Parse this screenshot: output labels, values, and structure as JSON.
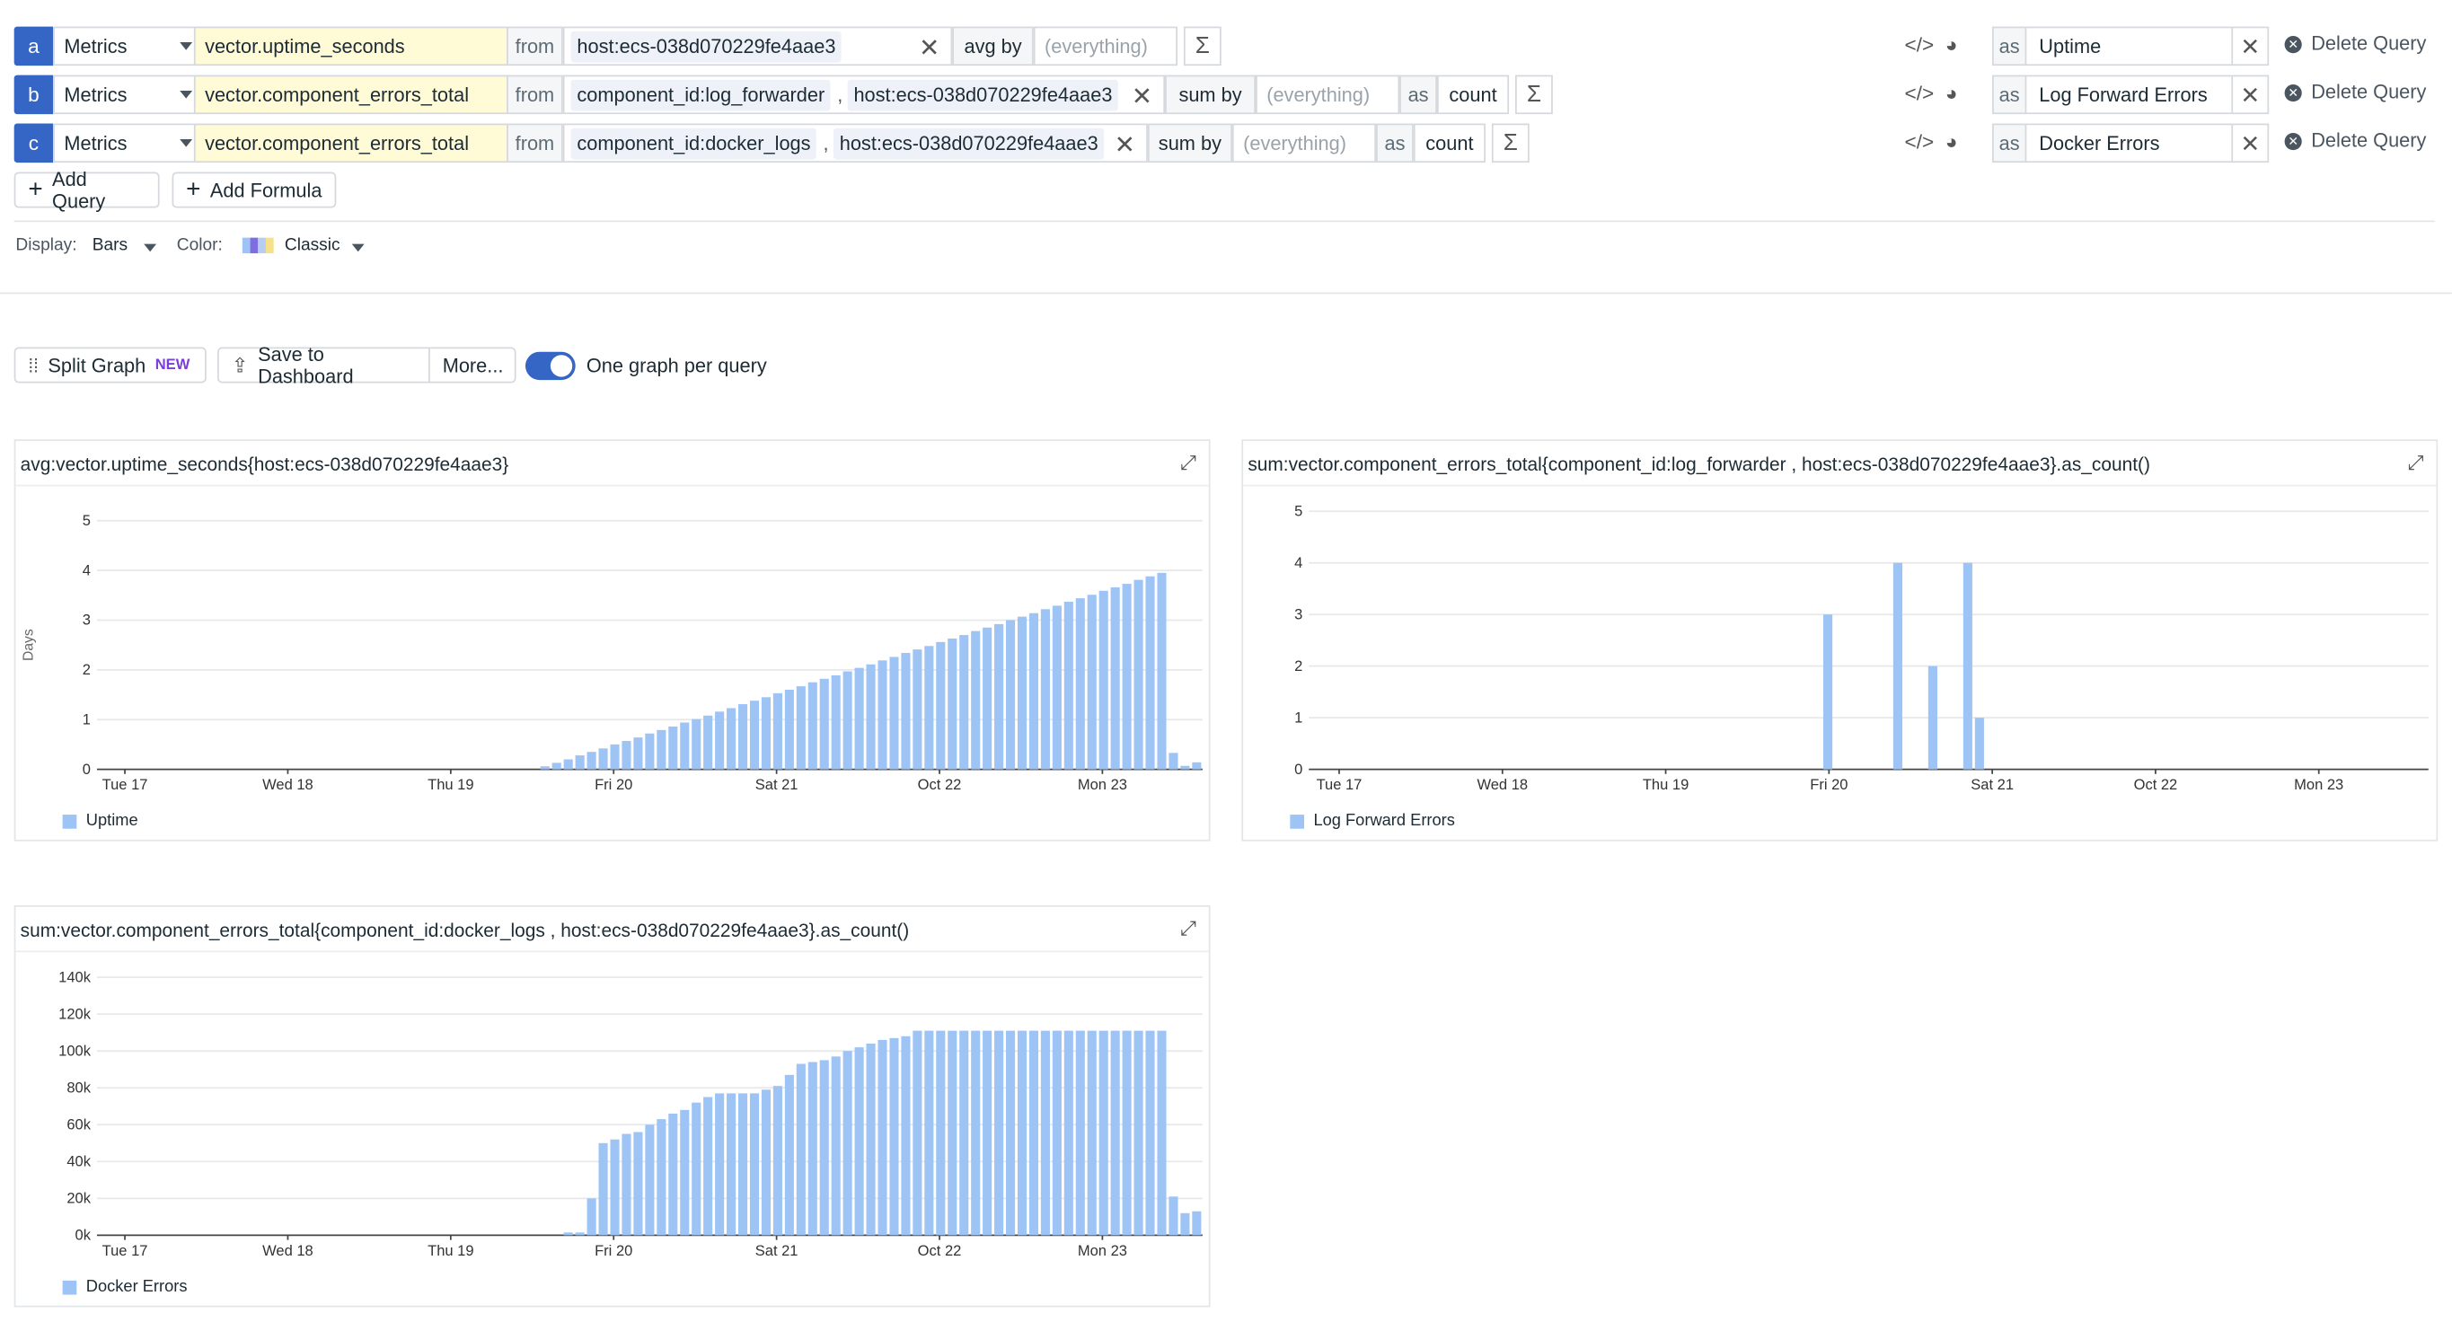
{
  "queries": [
    {
      "letter": "a",
      "source": "Metrics",
      "metric": "vector.uptime_seconds",
      "from_label": "from",
      "tags": [
        "host:ecs-038d070229fe4aae3"
      ],
      "agg_label": "avg by",
      "group_placeholder": "(everything)",
      "as_label": "",
      "rollup": "",
      "alias_as_label": "as",
      "alias": "Uptime",
      "delete_label": "Delete Query"
    },
    {
      "letter": "b",
      "source": "Metrics",
      "metric": "vector.component_errors_total",
      "from_label": "from",
      "tags": [
        "component_id:log_forwarder",
        "host:ecs-038d070229fe4aae3"
      ],
      "agg_label": "sum by",
      "group_placeholder": "(everything)",
      "as_label": "as",
      "rollup": "count",
      "alias_as_label": "as",
      "alias": "Log Forward Errors",
      "delete_label": "Delete Query"
    },
    {
      "letter": "c",
      "source": "Metrics",
      "metric": "vector.component_errors_total",
      "from_label": "from",
      "tags": [
        "component_id:docker_logs",
        "host:ecs-038d070229fe4aae3"
      ],
      "agg_label": "sum by",
      "group_placeholder": "(everything)",
      "as_label": "as",
      "rollup": "count",
      "alias_as_label": "as",
      "alias": "Docker Errors",
      "delete_label": "Delete Query"
    }
  ],
  "actions": {
    "add_query": "Add Query",
    "add_formula": "Add Formula"
  },
  "display": {
    "display_label": "Display:",
    "display_value": "Bars",
    "color_label": "Color:",
    "color_value": "Classic"
  },
  "toolbar": {
    "split_graph": "Split Graph",
    "split_badge": "NEW",
    "save_dashboard": "Save to Dashboard",
    "more": "More...",
    "one_graph_label": "One graph per query",
    "one_graph_on": true
  },
  "colors": {
    "accent": "#3565c5",
    "bar": "#9ec4f5",
    "metric_bg": "#fffbd6",
    "badge": "#7a3fd6"
  },
  "chart_data": [
    {
      "type": "bar",
      "title": "avg:vector.uptime_seconds{host:ecs-038d070229fe4aae3}",
      "ylabel": "Days",
      "ylim": [
        0,
        5
      ],
      "yticks": [
        0,
        1,
        2,
        3,
        4,
        5
      ],
      "xticks": [
        "Tue 17",
        "Wed 18",
        "Thu 19",
        "Fri 20",
        "Sat 21",
        "Oct 22",
        "Mon 23"
      ],
      "legend": "Uptime",
      "values": [
        0,
        0,
        0,
        0,
        0,
        0,
        0,
        0,
        0,
        0,
        0,
        0,
        0,
        0,
        0,
        0,
        0,
        0,
        0,
        0,
        0,
        0,
        0,
        0,
        0,
        0,
        0,
        0,
        0,
        0,
        0,
        0,
        0,
        0,
        0,
        0,
        0,
        0,
        0.06,
        0.13,
        0.2,
        0.28,
        0.35,
        0.42,
        0.5,
        0.57,
        0.64,
        0.72,
        0.79,
        0.86,
        0.94,
        1.01,
        1.08,
        1.16,
        1.23,
        1.31,
        1.38,
        1.45,
        1.53,
        1.6,
        1.67,
        1.75,
        1.82,
        1.89,
        1.97,
        2.04,
        2.11,
        2.19,
        2.26,
        2.34,
        2.41,
        2.48,
        2.56,
        2.63,
        2.7,
        2.78,
        2.85,
        2.92,
        3.0,
        3.07,
        3.14,
        3.22,
        3.29,
        3.37,
        3.44,
        3.51,
        3.59,
        3.66,
        3.73,
        3.81,
        3.88,
        3.95,
        0.33,
        0.07,
        0.14
      ]
    },
    {
      "type": "bar",
      "title": "sum:vector.component_errors_total{component_id:log_forwarder , host:ecs-038d070229fe4aae3}.as_count()",
      "ylabel": "",
      "ylim": [
        0,
        5
      ],
      "yticks": [
        0,
        1,
        2,
        3,
        4,
        5
      ],
      "xticks": [
        "Tue 17",
        "Wed 18",
        "Thu 19",
        "Fri 20",
        "Sat 21",
        "Oct 22",
        "Mon 23"
      ],
      "legend": "Log Forward Errors",
      "values": [
        0,
        0,
        0,
        0,
        0,
        0,
        0,
        0,
        0,
        0,
        0,
        0,
        0,
        0,
        0,
        0,
        0,
        0,
        0,
        0,
        0,
        0,
        0,
        0,
        0,
        0,
        0,
        0,
        0,
        0,
        0,
        0,
        0,
        0,
        0,
        0,
        0,
        0,
        0,
        0,
        0,
        0,
        0,
        0,
        0,
        0,
        0,
        0,
        0,
        0,
        0,
        0,
        0,
        0,
        0,
        0,
        0,
        0,
        0,
        0,
        0,
        0,
        0,
        0,
        0,
        0,
        0,
        0,
        0,
        0,
        0,
        0,
        0,
        0,
        0,
        0,
        0,
        0,
        0,
        0,
        0,
        0,
        0,
        0,
        0,
        0,
        0,
        0,
        0,
        0,
        0,
        0,
        0,
        0,
        0,
        0
      ],
      "sparse": [
        [
          44,
          3
        ],
        [
          50,
          4
        ],
        [
          53,
          2
        ],
        [
          56,
          4
        ],
        [
          57,
          1
        ]
      ]
    },
    {
      "type": "bar",
      "title": "sum:vector.component_errors_total{component_id:docker_logs , host:ecs-038d070229fe4aae3}.as_count()",
      "ylabel": "",
      "ylim": [
        0,
        140000
      ],
      "yticks": [
        0,
        20000,
        40000,
        60000,
        80000,
        100000,
        120000,
        140000
      ],
      "ytick_labels": [
        "0k",
        "20k",
        "40k",
        "60k",
        "80k",
        "100k",
        "120k",
        "140k"
      ],
      "xticks": [
        "Tue 17",
        "Wed 18",
        "Thu 19",
        "Fri 20",
        "Sat 21",
        "Oct 22",
        "Mon 23"
      ],
      "legend": "Docker Errors",
      "values": [
        0,
        0,
        0,
        0,
        0,
        0,
        0,
        0,
        0,
        0,
        0,
        0,
        0,
        0,
        0,
        0,
        0,
        0,
        0,
        0,
        0,
        0,
        0,
        0,
        0,
        0,
        0,
        0,
        0,
        0,
        0,
        0,
        0,
        0,
        0,
        0,
        0,
        0,
        0,
        0,
        1500,
        1500,
        20000,
        50000,
        52000,
        55000,
        56000,
        60000,
        63000,
        66000,
        68000,
        72000,
        75000,
        77000,
        77000,
        77000,
        77000,
        79000,
        81000,
        87000,
        93000,
        94000,
        95000,
        97000,
        100000,
        102000,
        104000,
        106000,
        107000,
        108000,
        111000,
        111000,
        111000,
        111000,
        111000,
        111000,
        111000,
        111000,
        111000,
        111000,
        111000,
        111000,
        111000,
        111000,
        111000,
        111000,
        111000,
        111000,
        111000,
        111000,
        111000,
        111000,
        21000,
        12000,
        13000
      ]
    }
  ]
}
